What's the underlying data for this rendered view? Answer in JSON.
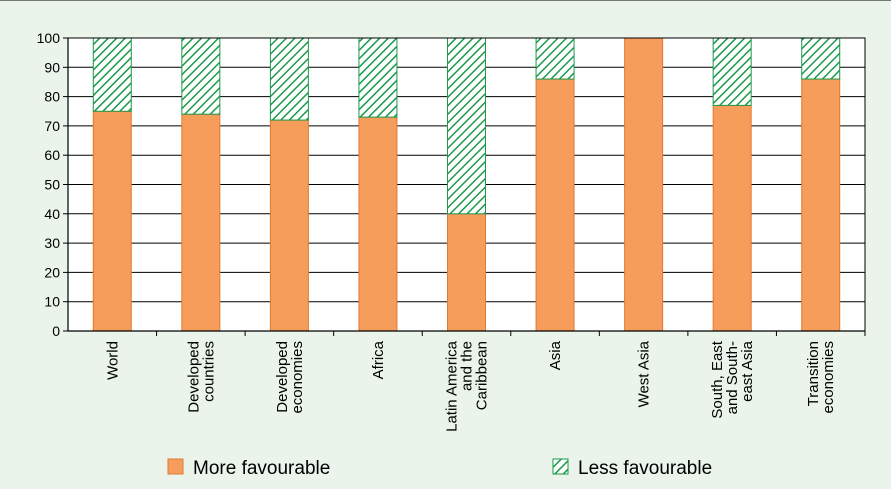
{
  "chart_data": {
    "type": "bar",
    "stacked": true,
    "categories": [
      [
        "World"
      ],
      [
        "Developed",
        "countries"
      ],
      [
        "Developed",
        "economies"
      ],
      [
        "Africa"
      ],
      [
        "Latin America",
        "and the",
        "Caribbean"
      ],
      [
        "Asia"
      ],
      [
        "West Asia"
      ],
      [
        "South, East",
        "and South-",
        "east Asia"
      ],
      [
        "Transition",
        "economies"
      ]
    ],
    "series": [
      {
        "name": "More favourable",
        "values": [
          75,
          74,
          72,
          73,
          40,
          86,
          100,
          77,
          86
        ]
      },
      {
        "name": "Less favourable",
        "values": [
          25,
          26,
          28,
          27,
          60,
          14,
          0,
          23,
          14
        ]
      }
    ],
    "ylim": [
      0,
      100
    ],
    "yticks": [
      0,
      10,
      20,
      30,
      40,
      50,
      60,
      70,
      80,
      90,
      100
    ],
    "grid": true,
    "legend": "bottom",
    "colors": {
      "more": "#f79d5c",
      "more_edge": "#e07a30",
      "less_hatch": "#1a9a4a",
      "less_bg": "#ffffff",
      "background": "#eaf4ea"
    }
  }
}
